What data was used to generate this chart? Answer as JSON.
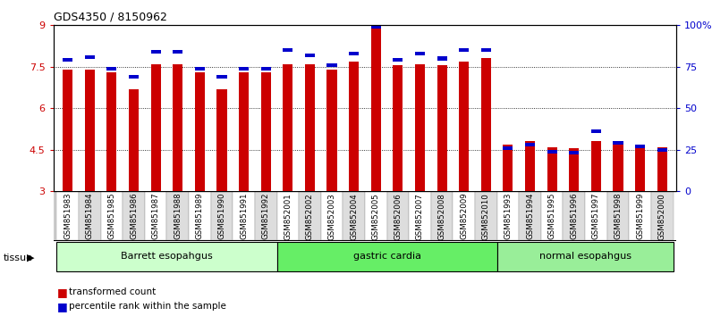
{
  "title": "GDS4350 / 8150962",
  "samples": [
    "GSM851983",
    "GSM851984",
    "GSM851985",
    "GSM851986",
    "GSM851987",
    "GSM851988",
    "GSM851989",
    "GSM851990",
    "GSM851991",
    "GSM851992",
    "GSM852001",
    "GSM852002",
    "GSM852003",
    "GSM852004",
    "GSM852005",
    "GSM852006",
    "GSM852007",
    "GSM852008",
    "GSM852009",
    "GSM852010",
    "GSM851993",
    "GSM851994",
    "GSM851995",
    "GSM851996",
    "GSM851997",
    "GSM851998",
    "GSM851999",
    "GSM852000"
  ],
  "red_values": [
    7.4,
    7.4,
    7.3,
    6.7,
    7.6,
    7.6,
    7.3,
    6.7,
    7.3,
    7.3,
    7.6,
    7.6,
    7.4,
    7.7,
    9.0,
    7.55,
    7.6,
    7.55,
    7.7,
    7.8,
    4.7,
    4.8,
    4.6,
    4.55,
    4.8,
    4.7,
    4.65,
    4.6
  ],
  "blue_values": [
    79,
    81,
    74,
    69,
    84,
    84,
    74,
    69,
    74,
    74,
    85,
    82,
    76,
    83,
    99,
    79,
    83,
    80,
    85,
    85,
    26,
    28,
    24,
    23,
    36,
    29,
    27,
    25
  ],
  "groups": [
    {
      "label": "Barrett esopahgus",
      "start": 0,
      "end": 9,
      "color": "#ccffcc"
    },
    {
      "label": "gastric cardia",
      "start": 10,
      "end": 19,
      "color": "#66ee66"
    },
    {
      "label": "normal esopahgus",
      "start": 20,
      "end": 27,
      "color": "#99ee99"
    }
  ],
  "ylim_left": [
    3,
    9
  ],
  "ylim_right": [
    0,
    100
  ],
  "yticks_left": [
    3,
    4.5,
    6,
    7.5,
    9
  ],
  "yticks_right_vals": [
    0,
    25,
    50,
    75,
    100
  ],
  "yticks_right_labels": [
    "0",
    "25",
    "50",
    "75",
    "100%"
  ],
  "bar_color_red": "#cc0000",
  "bar_color_blue": "#0000cc",
  "grid_color": "black",
  "tick_label_bg": "#cccccc",
  "bar_width": 0.45
}
